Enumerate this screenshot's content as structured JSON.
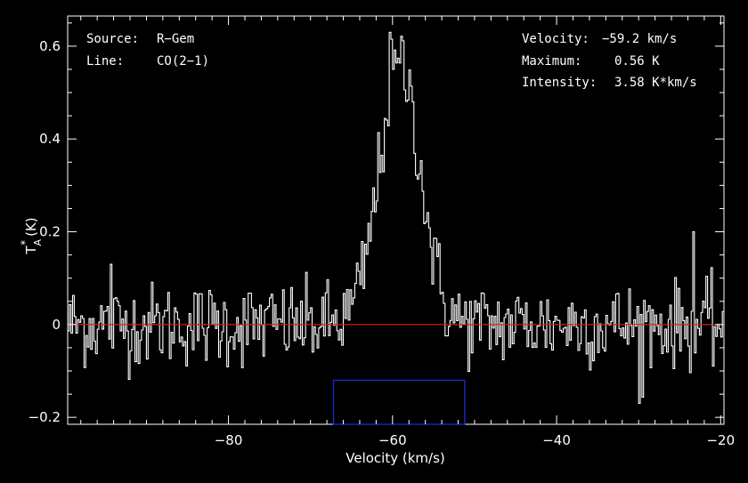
{
  "chart_data": {
    "type": "line",
    "title": "",
    "xlabel": "Velocity (km/s)",
    "ylabel": "T*A (K)",
    "xlim": [
      -99.6,
      -19.6
    ],
    "ylim": [
      -0.215,
      0.665
    ],
    "xticks": [
      -80,
      -60,
      -40,
      -20
    ],
    "xtick_labels": [
      "−80",
      "−60",
      "−40",
      "−20"
    ],
    "yticks": [
      -0.2,
      0,
      0.2,
      0.4,
      0.6
    ],
    "ytick_labels": [
      "−0.2",
      "0",
      "0.2",
      "0.4",
      "0.6"
    ],
    "baseline": 0,
    "baseline_color": "#d02010",
    "window": {
      "x": [
        -67.2,
        -51.2
      ],
      "y": [
        -0.215,
        -0.12
      ],
      "color": "#1a2bd8"
    },
    "series": [
      {
        "style": "step",
        "color": "#ffffff",
        "noise_sigma": 0.045,
        "peak": {
          "center": -59.2,
          "amplitude": 0.56,
          "fwhm": 5.9,
          "max": 0.63
        },
        "notable_points": [
          {
            "x": -29.9,
            "y": -0.17
          },
          {
            "x": -23.4,
            "y": 0.2
          },
          {
            "x": -94.3,
            "y": 0.13
          }
        ]
      }
    ]
  },
  "annotations": {
    "source_label": "Source:",
    "source_value": "R−Gem",
    "line_label": "Line:",
    "line_value": "CO(2−1)",
    "velocity_label": "Velocity:",
    "velocity_value": "−59.2 km/s",
    "maximum_label": "Maximum:",
    "maximum_value": "0.56 K",
    "intensity_label": "Intensity:",
    "intensity_value": "3.58 K*km/s"
  },
  "colors": {
    "background": "#000000",
    "axes": "#ffffff",
    "spectrum": "#ffffff",
    "baseline": "#d02010",
    "window": "#1a2bd8"
  }
}
